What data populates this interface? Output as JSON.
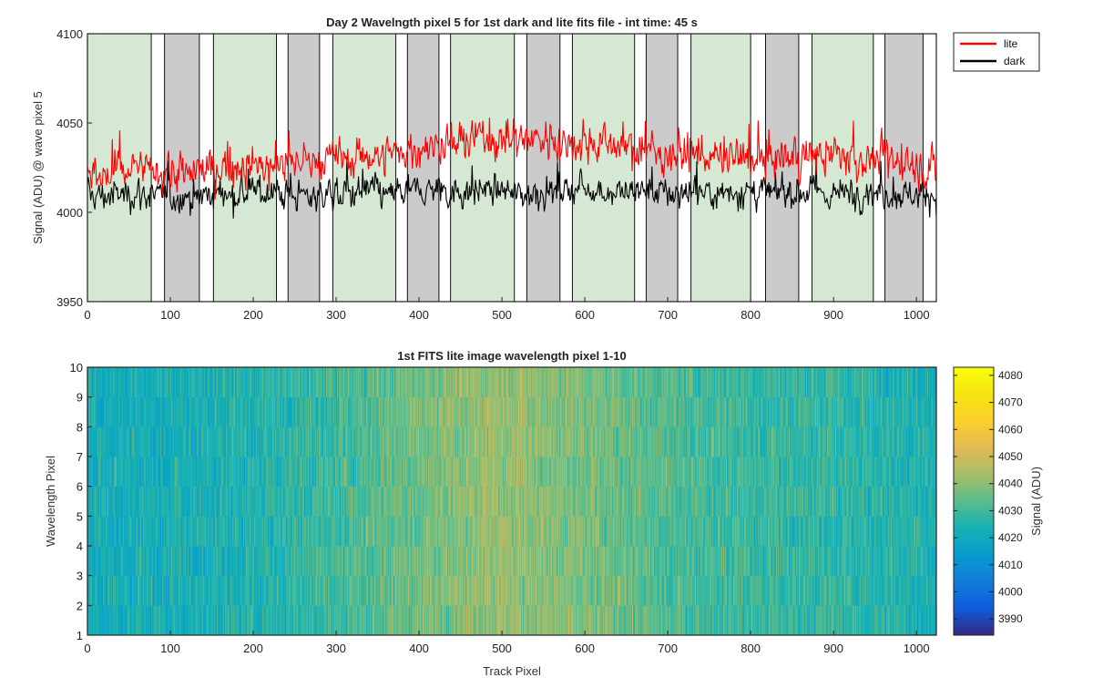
{
  "chart_data": [
    {
      "type": "line",
      "title": "Day 2 Wavelngth pixel 5 for 1st dark and lite fits file - int time: 45 s",
      "xlabel": "",
      "ylabel": "Signal (ADU) @ wave pixel 5",
      "xlim": [
        0,
        1024
      ],
      "ylim": [
        3950,
        4100
      ],
      "xticks": [
        "0",
        "100",
        "200",
        "300",
        "400",
        "500",
        "600",
        "700",
        "800",
        "900",
        "1000"
      ],
      "yticks": [
        "3950",
        "4000",
        "4050",
        "4100"
      ],
      "legend_position": "outside-top-right",
      "grid": false,
      "series": [
        {
          "name": "lite",
          "color": "#ff0000",
          "x": [
            0,
            20,
            40,
            60,
            80,
            100,
            120,
            140,
            160,
            180,
            200,
            220,
            240,
            260,
            280,
            300,
            320,
            340,
            360,
            380,
            400,
            420,
            440,
            460,
            480,
            500,
            520,
            540,
            560,
            580,
            600,
            620,
            640,
            660,
            680,
            700,
            720,
            740,
            760,
            780,
            800,
            820,
            840,
            860,
            880,
            900,
            920,
            940,
            960,
            980,
            1000,
            1024
          ],
          "values": [
            4018,
            4020,
            4022,
            4024,
            4023,
            4022,
            4021,
            4024,
            4025,
            4026,
            4026,
            4025,
            4027,
            4030,
            4028,
            4030,
            4031,
            4032,
            4032,
            4034,
            4036,
            4038,
            4038,
            4040,
            4042,
            4040,
            4041,
            4042,
            4040,
            4039,
            4040,
            4039,
            4038,
            4036,
            4034,
            4033,
            4034,
            4032,
            4030,
            4030,
            4029,
            4030,
            4031,
            4030,
            4031,
            4032,
            4031,
            4030,
            4030,
            4028,
            4027,
            4022
          ]
        },
        {
          "name": "dark",
          "color": "#000000",
          "x": [
            0,
            20,
            40,
            60,
            80,
            100,
            120,
            140,
            160,
            180,
            200,
            220,
            240,
            260,
            280,
            300,
            320,
            340,
            360,
            380,
            400,
            420,
            440,
            460,
            480,
            500,
            520,
            540,
            560,
            580,
            600,
            620,
            640,
            660,
            680,
            700,
            720,
            740,
            760,
            780,
            800,
            820,
            840,
            860,
            880,
            900,
            920,
            940,
            960,
            980,
            1000,
            1024
          ],
          "values": [
            4010,
            4009,
            4010,
            4011,
            4009,
            4008,
            4009,
            4010,
            4011,
            4010,
            4011,
            4012,
            4010,
            4009,
            4010,
            4011,
            4011,
            4012,
            4010,
            4010,
            4012,
            4013,
            4012,
            4011,
            4013,
            4012,
            4010,
            4011,
            4012,
            4013,
            4014,
            4012,
            4011,
            4012,
            4011,
            4010,
            4011,
            4012,
            4011,
            4012,
            4011,
            4010,
            4011,
            4012,
            4011,
            4010,
            4011,
            4012,
            4011,
            4010,
            4011,
            4009
          ]
        }
      ],
      "shaded_regions": [
        {
          "from": 0,
          "to": 77,
          "color": "#d5e8d4"
        },
        {
          "from": 93,
          "to": 135,
          "color": "#cbcbcb"
        },
        {
          "from": 152,
          "to": 228,
          "color": "#d5e8d4"
        },
        {
          "from": 242,
          "to": 280,
          "color": "#cbcbcb"
        },
        {
          "from": 296,
          "to": 372,
          "color": "#d5e8d4"
        },
        {
          "from": 386,
          "to": 424,
          "color": "#cbcbcb"
        },
        {
          "from": 438,
          "to": 515,
          "color": "#d5e8d4"
        },
        {
          "from": 530,
          "to": 570,
          "color": "#cbcbcb"
        },
        {
          "from": 585,
          "to": 660,
          "color": "#d5e8d4"
        },
        {
          "from": 674,
          "to": 712,
          "color": "#cbcbcb"
        },
        {
          "from": 728,
          "to": 800,
          "color": "#d5e8d4"
        },
        {
          "from": 818,
          "to": 858,
          "color": "#cbcbcb"
        },
        {
          "from": 874,
          "to": 948,
          "color": "#d5e8d4"
        },
        {
          "from": 962,
          "to": 1008,
          "color": "#cbcbcb"
        }
      ]
    },
    {
      "type": "heatmap",
      "title": "1st FITS lite image wavelength pixel 1-10",
      "xlabel": "Track Pixel",
      "ylabel": "Wavelength Pixel",
      "xlim": [
        0,
        1024
      ],
      "ylim": [
        1,
        10
      ],
      "xticks": [
        "0",
        "100",
        "200",
        "300",
        "400",
        "500",
        "600",
        "700",
        "800",
        "900",
        "1000"
      ],
      "yticks": [
        "1",
        "2",
        "3",
        "4",
        "5",
        "6",
        "7",
        "8",
        "9",
        "10"
      ],
      "rows": 9,
      "columns": 1024,
      "colorbar": {
        "label": "Signal (ADU)",
        "range": [
          3984,
          4083
        ],
        "ticks": [
          "3990",
          "4000",
          "4010",
          "4020",
          "4030",
          "4040",
          "4050",
          "4060",
          "4070",
          "4080"
        ],
        "colormap": "parula"
      },
      "mean_profile": {
        "x": [
          0,
          100,
          200,
          300,
          400,
          450,
          500,
          550,
          600,
          700,
          800,
          900,
          1024
        ],
        "values": [
          4022,
          4023,
          4025,
          4030,
          4037,
          4040,
          4042,
          4040,
          4038,
          4032,
          4029,
          4028,
          4024
        ]
      }
    }
  ]
}
